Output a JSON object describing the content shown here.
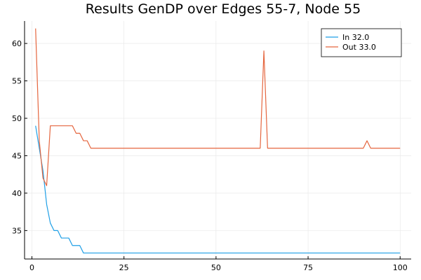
{
  "chart_data": {
    "type": "line",
    "title": "Results GenDP over Edges 55-7,  Node 55",
    "xlabel": "",
    "ylabel": "",
    "xlim": [
      -2,
      103
    ],
    "ylim": [
      31.2,
      63.0
    ],
    "x_ticks": [
      0,
      25,
      50,
      75,
      100
    ],
    "y_ticks": [
      35,
      40,
      45,
      50,
      55,
      60
    ],
    "grid": true,
    "legend_position": "top-right",
    "series": [
      {
        "name": "In 32.0",
        "color": "#1f9fe6",
        "points": [
          [
            1,
            49
          ],
          [
            2,
            46
          ],
          [
            3,
            43
          ],
          [
            4,
            38.5
          ],
          [
            5,
            36
          ],
          [
            6,
            35
          ],
          [
            7,
            35
          ],
          [
            8,
            34
          ],
          [
            9,
            34
          ],
          [
            10,
            34
          ],
          [
            11,
            33
          ],
          [
            12,
            33
          ],
          [
            13,
            33
          ],
          [
            14,
            32
          ],
          [
            100,
            32
          ]
        ]
      },
      {
        "name": "Out 33.0",
        "color": "#e5663f",
        "points": [
          [
            1,
            62
          ],
          [
            2,
            47
          ],
          [
            3,
            42
          ],
          [
            4,
            41
          ],
          [
            5,
            49
          ],
          [
            6,
            49
          ],
          [
            7,
            49
          ],
          [
            8,
            49
          ],
          [
            9,
            49
          ],
          [
            10,
            49
          ],
          [
            11,
            49
          ],
          [
            12,
            48
          ],
          [
            13,
            48
          ],
          [
            14,
            47
          ],
          [
            15,
            47
          ],
          [
            16,
            46
          ],
          [
            62,
            46
          ],
          [
            63,
            59
          ],
          [
            64,
            46
          ],
          [
            90,
            46
          ],
          [
            91,
            47
          ],
          [
            92,
            46
          ],
          [
            100,
            46
          ]
        ]
      }
    ]
  }
}
